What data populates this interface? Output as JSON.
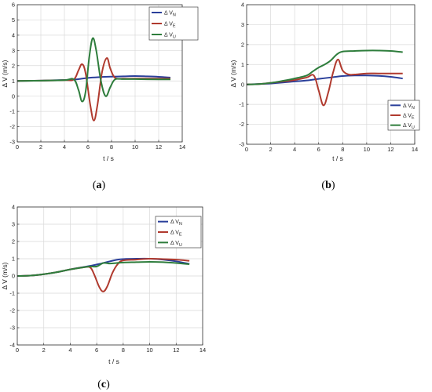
{
  "chart_data": [
    {
      "type": "line",
      "caption_letter": "a",
      "xlabel": "t / s",
      "ylabel": "Δ V (m/s)",
      "xlim": [
        0,
        14
      ],
      "ylim": [
        -3,
        6
      ],
      "xticks": [
        0,
        2,
        4,
        6,
        8,
        10,
        12,
        14
      ],
      "yticks": [
        -3,
        -2,
        -1,
        0,
        1,
        2,
        3,
        4,
        5,
        6
      ],
      "grid": true,
      "legend": "top-right",
      "series": [
        {
          "name_main": "Δ V",
          "name_sub": "N",
          "color": "#2a3f9a",
          "points": [
            [
              0,
              1.0
            ],
            [
              2,
              1.02
            ],
            [
              4,
              1.06
            ],
            [
              5,
              1.1
            ],
            [
              6,
              1.2
            ],
            [
              7,
              1.25
            ],
            [
              8,
              1.28
            ],
            [
              9,
              1.3
            ],
            [
              10,
              1.32
            ],
            [
              11,
              1.3
            ],
            [
              12,
              1.27
            ],
            [
              13,
              1.22
            ]
          ]
        },
        {
          "name_main": "Δ V",
          "name_sub": "E",
          "color": "#b03a2e",
          "points": [
            [
              0,
              1.0
            ],
            [
              2,
              1.02
            ],
            [
              4,
              1.05
            ],
            [
              4.8,
              1.1
            ],
            [
              5.2,
              1.7
            ],
            [
              5.5,
              2.1
            ],
            [
              5.8,
              1.5
            ],
            [
              6.2,
              -0.6
            ],
            [
              6.5,
              -1.6
            ],
            [
              6.8,
              -0.6
            ],
            [
              7.2,
              1.6
            ],
            [
              7.6,
              2.5
            ],
            [
              7.9,
              1.8
            ],
            [
              8.3,
              1.2
            ],
            [
              9,
              1.15
            ],
            [
              10,
              1.15
            ],
            [
              12,
              1.15
            ],
            [
              13,
              1.15
            ]
          ]
        },
        {
          "name_main": "Δ V",
          "name_sub": "U",
          "color": "#2e7d3c",
          "points": [
            [
              0,
              1.0
            ],
            [
              2,
              1.02
            ],
            [
              4,
              1.05
            ],
            [
              4.8,
              1.1
            ],
            [
              5.2,
              0.4
            ],
            [
              5.5,
              -0.35
            ],
            [
              5.8,
              0.3
            ],
            [
              6.1,
              2.5
            ],
            [
              6.4,
              3.8
            ],
            [
              6.7,
              3.0
            ],
            [
              7.1,
              1.0
            ],
            [
              7.5,
              0.0
            ],
            [
              7.9,
              0.6
            ],
            [
              8.3,
              1.1
            ],
            [
              9,
              1.12
            ],
            [
              10,
              1.12
            ],
            [
              12,
              1.1
            ],
            [
              13,
              1.1
            ]
          ]
        }
      ]
    },
    {
      "type": "line",
      "caption_letter": "b",
      "xlabel": "t / s",
      "ylabel": "Δ V (m/s)",
      "xlim": [
        0,
        14
      ],
      "ylim": [
        -3,
        4
      ],
      "xticks": [
        0,
        2,
        4,
        6,
        8,
        10,
        12,
        14
      ],
      "yticks": [
        -3,
        -2,
        -1,
        0,
        1,
        2,
        3,
        4
      ],
      "grid": true,
      "legend": "bottom-right",
      "series": [
        {
          "name_main": "Δ V",
          "name_sub": "N",
          "color": "#2a3f9a",
          "points": [
            [
              0,
              0.0
            ],
            [
              2,
              0.05
            ],
            [
              4,
              0.15
            ],
            [
              5,
              0.2
            ],
            [
              6,
              0.28
            ],
            [
              7,
              0.35
            ],
            [
              8,
              0.42
            ],
            [
              9,
              0.45
            ],
            [
              10,
              0.45
            ],
            [
              11,
              0.43
            ],
            [
              12,
              0.38
            ],
            [
              13,
              0.3
            ]
          ]
        },
        {
          "name_main": "Δ V",
          "name_sub": "E",
          "color": "#b03a2e",
          "points": [
            [
              0,
              0.0
            ],
            [
              1,
              0.02
            ],
            [
              2,
              0.08
            ],
            [
              3,
              0.15
            ],
            [
              4,
              0.22
            ],
            [
              5,
              0.35
            ],
            [
              5.6,
              0.45
            ],
            [
              6.0,
              -0.3
            ],
            [
              6.4,
              -1.05
            ],
            [
              6.8,
              -0.4
            ],
            [
              7.2,
              0.6
            ],
            [
              7.6,
              1.25
            ],
            [
              8.0,
              0.7
            ],
            [
              8.5,
              0.5
            ],
            [
              9,
              0.5
            ],
            [
              10,
              0.55
            ],
            [
              11,
              0.55
            ],
            [
              12,
              0.55
            ],
            [
              13,
              0.55
            ]
          ]
        },
        {
          "name_main": "Δ V",
          "name_sub": "U",
          "color": "#2e7d3c",
          "points": [
            [
              0,
              0.0
            ],
            [
              1,
              0.02
            ],
            [
              2,
              0.08
            ],
            [
              3,
              0.18
            ],
            [
              4,
              0.3
            ],
            [
              5,
              0.45
            ],
            [
              5.5,
              0.65
            ],
            [
              6.0,
              0.85
            ],
            [
              6.5,
              1.0
            ],
            [
              7.0,
              1.2
            ],
            [
              7.5,
              1.5
            ],
            [
              8,
              1.65
            ],
            [
              9,
              1.68
            ],
            [
              10,
              1.7
            ],
            [
              11,
              1.7
            ],
            [
              12,
              1.68
            ],
            [
              13,
              1.62
            ]
          ]
        }
      ]
    },
    {
      "type": "line",
      "caption_letter": "c",
      "xlabel": "t / s",
      "ylabel": "Δ V (m/s)",
      "xlim": [
        0,
        14
      ],
      "ylim": [
        -4,
        4
      ],
      "xticks": [
        0,
        2,
        4,
        6,
        8,
        10,
        12,
        14
      ],
      "yticks": [
        -4,
        -3,
        -2,
        -1,
        0,
        1,
        2,
        3,
        4
      ],
      "grid": true,
      "legend": "top-right",
      "series": [
        {
          "name_main": "Δ V",
          "name_sub": "N",
          "color": "#2a3f9a",
          "points": [
            [
              0,
              0.0
            ],
            [
              1,
              0.02
            ],
            [
              2,
              0.1
            ],
            [
              3,
              0.22
            ],
            [
              4,
              0.38
            ],
            [
              5,
              0.52
            ],
            [
              5.6,
              0.6
            ],
            [
              6.2,
              0.7
            ],
            [
              7,
              0.85
            ],
            [
              7.6,
              0.95
            ],
            [
              8,
              0.98
            ],
            [
              9,
              1.0
            ],
            [
              10,
              1.0
            ],
            [
              11,
              0.95
            ],
            [
              12,
              0.85
            ],
            [
              13,
              0.7
            ]
          ]
        },
        {
          "name_main": "Δ V",
          "name_sub": "E",
          "color": "#b03a2e",
          "points": [
            [
              0,
              0.0
            ],
            [
              1,
              0.02
            ],
            [
              2,
              0.1
            ],
            [
              3,
              0.22
            ],
            [
              4,
              0.38
            ],
            [
              5,
              0.5
            ],
            [
              5.5,
              0.5
            ],
            [
              5.8,
              0.1
            ],
            [
              6.2,
              -0.65
            ],
            [
              6.5,
              -0.9
            ],
            [
              6.8,
              -0.6
            ],
            [
              7.2,
              0.2
            ],
            [
              7.6,
              0.7
            ],
            [
              8,
              0.9
            ],
            [
              9,
              0.95
            ],
            [
              10,
              1.0
            ],
            [
              11,
              0.98
            ],
            [
              12,
              0.95
            ],
            [
              13,
              0.88
            ]
          ]
        },
        {
          "name_main": "Δ V",
          "name_sub": "U",
          "color": "#2e7d3c",
          "points": [
            [
              0,
              0.0
            ],
            [
              1,
              0.02
            ],
            [
              2,
              0.1
            ],
            [
              3,
              0.22
            ],
            [
              4,
              0.38
            ],
            [
              5,
              0.5
            ],
            [
              5.5,
              0.55
            ],
            [
              6,
              0.55
            ],
            [
              6.5,
              0.75
            ],
            [
              7,
              0.72
            ],
            [
              7.5,
              0.75
            ],
            [
              8,
              0.78
            ],
            [
              9,
              0.8
            ],
            [
              10,
              0.82
            ],
            [
              11,
              0.8
            ],
            [
              12,
              0.75
            ],
            [
              13,
              0.68
            ]
          ]
        }
      ]
    }
  ]
}
